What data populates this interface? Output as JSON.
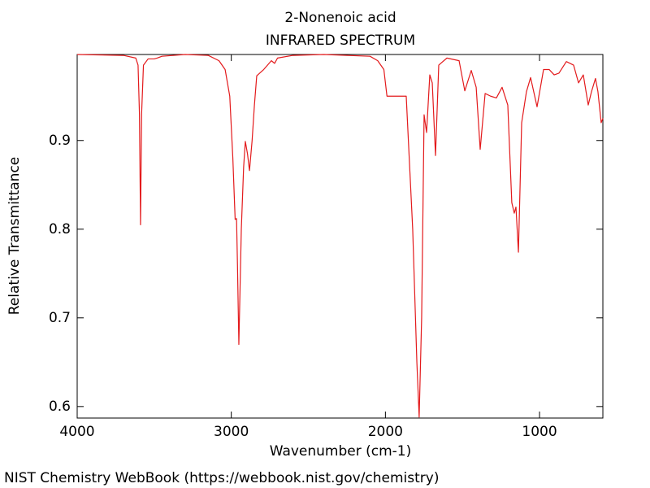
{
  "chart_data": {
    "type": "line",
    "title": "2-Nonenoic acid",
    "subtitle": "INFRARED SPECTRUM",
    "x_label": "Wavenumber (cm-1)",
    "y_label": "Relative Transmittance",
    "footer": "NIST Chemistry WebBook (https://webbook.nist.gov/chemistry)",
    "xlim": [
      4000,
      589
    ],
    "ylim": [
      0.587,
      0.997
    ],
    "xticks": [
      4000,
      3000,
      2000,
      1000
    ],
    "yticks": [
      0.6,
      0.7,
      0.8,
      0.9
    ],
    "grid": false,
    "series": [
      {
        "color": "#e31a1c",
        "x": [
          4000,
          3700,
          3620,
          3605,
          3596,
          3589,
          3582,
          3570,
          3540,
          3500,
          3480,
          3450,
          3300,
          3150,
          3080,
          3040,
          3010,
          2990,
          2975,
          2966,
          2960,
          2951,
          2935,
          2920,
          2909,
          2895,
          2882,
          2865,
          2850,
          2835,
          2790,
          2740,
          2719,
          2700,
          2600,
          2400,
          2100,
          2050,
          2010,
          1990,
          1865,
          1823,
          1796,
          1781,
          1765,
          1749,
          1733,
          1712,
          1696,
          1675,
          1654,
          1601,
          1522,
          1485,
          1443,
          1411,
          1385,
          1353,
          1317,
          1280,
          1243,
          1206,
          1180,
          1164,
          1153,
          1137,
          1116,
          1085,
          1058,
          1016,
          974,
          937,
          905,
          874,
          826,
          779,
          747,
          716,
          684,
          663,
          637,
          621,
          600,
          589
        ],
        "values": [
          0.997,
          0.996,
          0.993,
          0.985,
          0.93,
          0.805,
          0.93,
          0.985,
          0.992,
          0.992,
          0.993,
          0.995,
          0.997,
          0.996,
          0.99,
          0.98,
          0.95,
          0.88,
          0.811,
          0.812,
          0.76,
          0.67,
          0.8,
          0.87,
          0.899,
          0.885,
          0.866,
          0.9,
          0.94,
          0.973,
          0.98,
          0.99,
          0.987,
          0.993,
          0.996,
          0.997,
          0.995,
          0.99,
          0.98,
          0.95,
          0.95,
          0.8,
          0.65,
          0.588,
          0.7,
          0.929,
          0.909,
          0.974,
          0.965,
          0.883,
          0.985,
          0.993,
          0.99,
          0.956,
          0.979,
          0.96,
          0.89,
          0.953,
          0.95,
          0.948,
          0.96,
          0.94,
          0.83,
          0.818,
          0.825,
          0.774,
          0.92,
          0.955,
          0.971,
          0.938,
          0.98,
          0.98,
          0.974,
          0.976,
          0.989,
          0.985,
          0.965,
          0.974,
          0.94,
          0.955,
          0.97,
          0.955,
          0.92,
          0.925
        ]
      }
    ]
  }
}
